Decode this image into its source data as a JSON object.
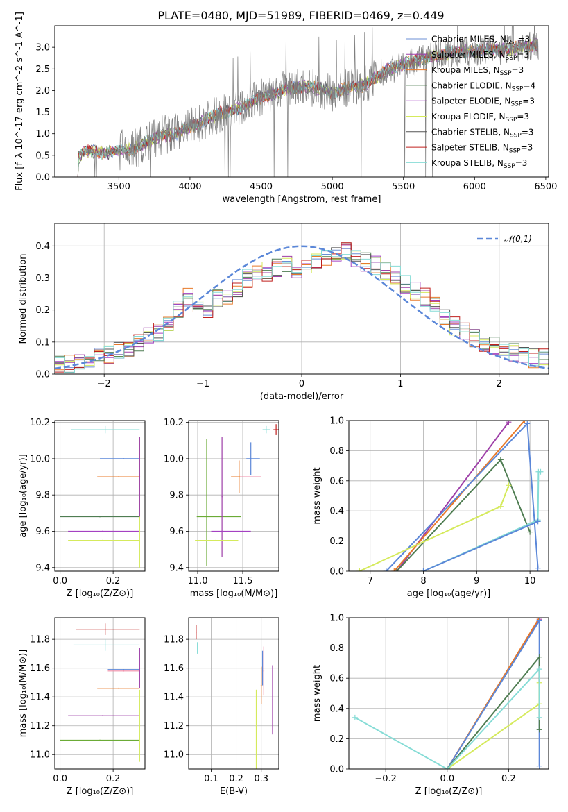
{
  "chart_data": [
    {
      "type": "line",
      "title": "PLATE=0480, MJD=51989, FIBERID=0469, z=0.449",
      "xlabel": "wavelength [Angstrom, rest frame]",
      "ylabel": "Flux [f_λ 10^-17 erg cm^-2 s^-1 A^-1]",
      "xlim": [
        3050,
        6520
      ],
      "ylim": [
        0,
        3.5
      ],
      "xticks": [
        3500,
        4000,
        4500,
        5000,
        5500,
        6000,
        6500
      ],
      "yticks": [
        0.0,
        0.5,
        1.0,
        1.5,
        2.0,
        2.5,
        3.0
      ],
      "spectrum_anchors": {
        "x": [
          3200,
          3260,
          3300,
          3400,
          3500,
          3600,
          3700,
          3800,
          3900,
          4000,
          4100,
          4200,
          4300,
          4400,
          4500,
          4600,
          4700,
          4800,
          4900,
          5000,
          5100,
          5200,
          5300,
          5400,
          5500,
          5600,
          5700,
          5800,
          5900,
          6000,
          6100,
          6200,
          6300,
          6450
        ],
        "y": [
          0.4,
          0.58,
          0.6,
          0.55,
          0.6,
          0.65,
          0.8,
          0.95,
          1.0,
          1.15,
          1.3,
          1.45,
          1.55,
          1.65,
          1.85,
          1.95,
          2.05,
          2.1,
          2.05,
          1.95,
          2.05,
          2.1,
          2.3,
          2.5,
          2.6,
          2.7,
          2.8,
          2.85,
          2.9,
          2.9,
          2.95,
          2.95,
          3.0,
          3.05
        ]
      },
      "legend_loc": "upper right",
      "series": [
        {
          "name": "Chabrier MILES",
          "nssp": "3",
          "color": "#6b8fd6"
        },
        {
          "name": "Salpeter MILES",
          "nssp": "3",
          "color": "#9e3fa8"
        },
        {
          "name": "Kroupa MILES",
          "nssp": "3",
          "color": "#e87a2a"
        },
        {
          "name": "Chabrier ELODIE",
          "nssp": "4",
          "color": "#4f7d52"
        },
        {
          "name": "Salpeter ELODIE",
          "nssp": "3",
          "color": "#a441c2"
        },
        {
          "name": "Kroupa ELODIE",
          "nssp": "3",
          "color": "#d5ea5c"
        },
        {
          "name": "Chabrier STELIB",
          "nssp": "3",
          "color": "#555555"
        },
        {
          "name": "Salpeter STELIB",
          "nssp": "3",
          "color": "#c0201f"
        },
        {
          "name": "Kroupa STELIB",
          "nssp": "3",
          "color": "#86dcd6"
        }
      ],
      "data_color": "#7f7f7f",
      "grid": false
    },
    {
      "type": "area",
      "xlabel": "(data-model)/error",
      "ylabel": "Normed distribution",
      "xlim": [
        -2.5,
        2.5
      ],
      "ylim": [
        0,
        0.47
      ],
      "xticks": [
        -2,
        -1,
        0,
        1,
        2
      ],
      "yticks": [
        0.0,
        0.1,
        0.2,
        0.3,
        0.4
      ],
      "grid": true,
      "legend": "𝒩(0,1)",
      "legend_loc": "upper right",
      "gaussian": {
        "mean": 0,
        "sigma": 1,
        "color": "#5b87d8"
      },
      "histogram_bins": {
        "start": -2.5,
        "width": 0.1,
        "count": 50
      },
      "histogram_base": [
        0.03,
        0.03,
        0.04,
        0.05,
        0.06,
        0.06,
        0.07,
        0.08,
        0.1,
        0.12,
        0.13,
        0.16,
        0.2,
        0.24,
        0.21,
        0.19,
        0.24,
        0.23,
        0.27,
        0.3,
        0.31,
        0.32,
        0.33,
        0.34,
        0.32,
        0.33,
        0.35,
        0.36,
        0.37,
        0.38,
        0.36,
        0.35,
        0.34,
        0.32,
        0.31,
        0.28,
        0.26,
        0.24,
        0.21,
        0.18,
        0.15,
        0.13,
        0.11,
        0.1,
        0.09,
        0.08,
        0.07,
        0.06,
        0.05,
        0.05
      ]
    },
    {
      "type": "scatter",
      "xlabel": "Z [log₁₀(Z/Z⊙)]",
      "ylabel": "age  [log₁₀(age/yr)]",
      "xlim": [
        -0.02,
        0.32
      ],
      "ylim": [
        9.38,
        10.21
      ],
      "xticks": [
        0.0,
        0.2
      ],
      "yticks": [
        9.4,
        9.6,
        9.8,
        10.0,
        10.2
      ],
      "grid": true,
      "points": [
        {
          "x": 0.17,
          "xerr": [
            0.13,
            0.13
          ],
          "y": 10.16,
          "yerr": [
            0.02,
            0.02
          ],
          "color": "#86dcd6"
        },
        {
          "x": 0.24,
          "xerr": [
            0.09,
            0.06
          ],
          "y": 10.0,
          "yerr": [
            0.0,
            0.0
          ],
          "color": "#5b87d8"
        },
        {
          "x": 0.22,
          "xerr": [
            0.08,
            0.08
          ],
          "y": 9.9,
          "yerr": [
            0.0,
            0.0
          ],
          "color": "#e87a2a"
        },
        {
          "x": 0.15,
          "xerr": [
            0.15,
            0.15
          ],
          "y": 9.68,
          "yerr": [
            0.0,
            0.0
          ],
          "color": "#4f7d52"
        },
        {
          "x": 0.16,
          "xerr": [
            0.13,
            0.14
          ],
          "y": 9.6,
          "yerr": [
            0.0,
            0.0
          ],
          "color": "#a441c2"
        },
        {
          "x": 0.16,
          "xerr": [
            0.13,
            0.14
          ],
          "y": 9.55,
          "yerr": [
            0.0,
            0.0
          ],
          "color": "#d5ea5c"
        },
        {
          "x": 0.3,
          "xerr": [
            0.0,
            0.0
          ],
          "y": 9.76,
          "yerr": [
            0.36,
            0.36
          ],
          "color": "#d5ea5c"
        },
        {
          "x": 0.3,
          "xerr": [
            0.0,
            0.0
          ],
          "y": 9.9,
          "yerr": [
            0.22,
            0.22
          ],
          "color": "#9e3fa8"
        }
      ]
    },
    {
      "type": "scatter",
      "xlabel": "mass [log₁₀(M/M⊙)]",
      "ylabel": "",
      "xlim": [
        10.9,
        11.9
      ],
      "ylim": [
        9.38,
        10.21
      ],
      "xticks": [
        11.0,
        11.5
      ],
      "yticks": [
        9.4,
        9.6,
        9.8,
        10.0,
        10.2
      ],
      "grid": true,
      "points": [
        {
          "x": 11.1,
          "xerr": [
            0.11,
            0.38
          ],
          "y": 9.68,
          "yerr": [
            0.27,
            0.43
          ],
          "color": "#6bab36"
        },
        {
          "x": 11.27,
          "xerr": [
            0.0,
            0.0
          ],
          "y": 9.79,
          "yerr": [
            0.33,
            0.33
          ],
          "color": "#9e3fa8"
        },
        {
          "x": 11.27,
          "xerr": [
            0.12,
            0.32
          ],
          "y": 9.6,
          "yerr": [
            0.0,
            0.0
          ],
          "color": "#a441c2"
        },
        {
          "x": 11.2,
          "xerr": [
            0.23,
            0.25
          ],
          "y": 9.55,
          "yerr": [
            0.0,
            0.0
          ],
          "color": "#d5ea5c"
        },
        {
          "x": 11.46,
          "xerr": [
            0.09,
            0.08
          ],
          "y": 9.9,
          "yerr": [
            0.09,
            0.09
          ],
          "color": "#e87a2a"
        },
        {
          "x": 11.58,
          "xerr": [
            0.11,
            0.12
          ],
          "y": 9.9,
          "yerr": [
            0.0,
            0.0
          ],
          "color": "#f08da8"
        },
        {
          "x": 11.59,
          "xerr": [
            0.05,
            0.1
          ],
          "y": 10.0,
          "yerr": [
            0.09,
            0.09
          ],
          "color": "#5b87d8"
        },
        {
          "x": 11.76,
          "xerr": [
            0.04,
            0.04
          ],
          "y": 10.16,
          "yerr": [
            0.02,
            0.02
          ],
          "color": "#86dcd6"
        },
        {
          "x": 11.87,
          "xerr": [
            0.03,
            0.03
          ],
          "y": 10.16,
          "yerr": [
            0.03,
            0.03
          ],
          "color": "#c0201f"
        }
      ]
    },
    {
      "type": "line",
      "xlabel": "age  [log₁₀(age/yr)]",
      "ylabel": "mass weight",
      "xlim": [
        6.6,
        10.35
      ],
      "ylim": [
        0,
        1
      ],
      "xticks": [
        7,
        8,
        9,
        10
      ],
      "yticks": [
        0.0,
        0.2,
        0.4,
        0.6,
        0.8,
        1.0
      ],
      "grid": true,
      "series": [
        {
          "color": "#9e3fa8",
          "x": [
            7.5,
            9.6
          ],
          "y": [
            0.0,
            0.99
          ]
        },
        {
          "color": "#e87a2a",
          "x": [
            7.45,
            9.9
          ],
          "y": [
            0.0,
            1.0
          ]
        },
        {
          "color": "#5b87d8",
          "x": [
            7.3,
            9.95,
            10.15
          ],
          "y": [
            0.0,
            0.98,
            0.02
          ]
        },
        {
          "color": "#4f7d52",
          "x": [
            7.5,
            9.45,
            10.0
          ],
          "y": [
            0.0,
            0.74,
            0.26
          ]
        },
        {
          "color": "#d5ea5c",
          "x": [
            6.8,
            9.45,
            9.6
          ],
          "y": [
            0.0,
            0.43,
            0.57
          ]
        },
        {
          "color": "#86dcd6",
          "x": [
            8.0,
            10.15,
            10.16,
            10.2
          ],
          "y": [
            0.0,
            0.34,
            0.66,
            0.66
          ]
        },
        {
          "color": "#5b87d8",
          "x": [
            8.0,
            10.15
          ],
          "y": [
            0.0,
            0.33
          ]
        }
      ]
    },
    {
      "type": "scatter",
      "xlabel": "Z [log₁₀(Z/Z⊙)]",
      "ylabel": "mass [log₁₀(M/M⊙)]",
      "xlim": [
        -0.02,
        0.32
      ],
      "ylim": [
        10.9,
        11.95
      ],
      "xticks": [
        0.0,
        0.2
      ],
      "yticks": [
        11.0,
        11.2,
        11.4,
        11.6,
        11.8
      ],
      "grid": true,
      "points": [
        {
          "x": 0.17,
          "xerr": [
            0.11,
            0.13
          ],
          "y": 11.87,
          "yerr": [
            0.04,
            0.04
          ],
          "color": "#c0201f"
        },
        {
          "x": 0.17,
          "xerr": [
            0.12,
            0.13
          ],
          "y": 11.76,
          "yerr": [
            0.04,
            0.04
          ],
          "color": "#86dcd6"
        },
        {
          "x": 0.24,
          "xerr": [
            0.06,
            0.06
          ],
          "y": 11.58,
          "yerr": [
            0.0,
            0.0
          ],
          "color": "#f08da8"
        },
        {
          "x": 0.24,
          "xerr": [
            0.06,
            0.06
          ],
          "y": 11.59,
          "yerr": [
            0.0,
            0.0
          ],
          "color": "#5b87d8"
        },
        {
          "x": 0.22,
          "xerr": [
            0.08,
            0.08
          ],
          "y": 11.46,
          "yerr": [
            0.0,
            0.0
          ],
          "color": "#e87a2a"
        },
        {
          "x": 0.16,
          "xerr": [
            0.13,
            0.14
          ],
          "y": 11.27,
          "yerr": [
            0.0,
            0.0
          ],
          "color": "#9e3fa8"
        },
        {
          "x": 0.15,
          "xerr": [
            0.15,
            0.15
          ],
          "y": 11.1,
          "yerr": [
            0.0,
            0.0
          ],
          "color": "#6bab36"
        },
        {
          "x": 0.3,
          "xerr": [
            0.0,
            0.0
          ],
          "y": 11.2,
          "yerr": [
            0.25,
            0.25
          ],
          "color": "#d5ea5c"
        },
        {
          "x": 0.3,
          "xerr": [
            0.0,
            0.0
          ],
          "y": 11.6,
          "yerr": [
            0.14,
            0.14
          ],
          "color": "#9e3fa8"
        }
      ]
    },
    {
      "type": "scatter",
      "xlabel": "E(B-V)",
      "ylabel": "",
      "xlim": [
        0.01,
        0.37
      ],
      "ylim": [
        10.9,
        11.95
      ],
      "xticks": [
        0.1,
        0.2,
        0.3
      ],
      "yticks": [
        11.0,
        11.2,
        11.4,
        11.6,
        11.8
      ],
      "grid": true,
      "points": [
        {
          "x": 0.04,
          "xerr": [
            0.0,
            0.0
          ],
          "y": 11.85,
          "yerr": [
            0.05,
            0.05
          ],
          "color": "#c0201f"
        },
        {
          "x": 0.045,
          "xerr": [
            0.0,
            0.0
          ],
          "y": 11.74,
          "yerr": [
            0.04,
            0.04
          ],
          "color": "#86dcd6"
        },
        {
          "x": 0.28,
          "xerr": [
            0.0,
            0.0
          ],
          "y": 11.2,
          "yerr": [
            0.3,
            0.25
          ],
          "color": "#d5ea5c"
        },
        {
          "x": 0.3,
          "xerr": [
            0.0,
            0.0
          ],
          "y": 11.48,
          "yerr": [
            0.13,
            0.13
          ],
          "color": "#e87a2a"
        },
        {
          "x": 0.305,
          "xerr": [
            0.0,
            0.0
          ],
          "y": 11.6,
          "yerr": [
            0.12,
            0.12
          ],
          "color": "#5b87d8"
        },
        {
          "x": 0.31,
          "xerr": [
            0.0,
            0.0
          ],
          "y": 11.58,
          "yerr": [
            0.17,
            0.17
          ],
          "color": "#f08da8"
        },
        {
          "x": 0.345,
          "xerr": [
            0.0,
            0.0
          ],
          "y": 11.38,
          "yerr": [
            0.24,
            0.24
          ],
          "color": "#9e3fa8"
        }
      ]
    },
    {
      "type": "line",
      "xlabel": "Z [log₁₀(Z/Z⊙)]",
      "ylabel": "mass weight",
      "xlim": [
        -0.32,
        0.33
      ],
      "ylim": [
        0,
        1
      ],
      "xticks": [
        -0.2,
        0.0,
        0.2
      ],
      "yticks": [
        0.0,
        0.2,
        0.4,
        0.6,
        0.8,
        1.0
      ],
      "grid": true,
      "series": [
        {
          "color": "#9e3fa8",
          "x": [
            0.0,
            0.3
          ],
          "y": [
            0.0,
            0.99
          ]
        },
        {
          "color": "#e87a2a",
          "x": [
            0.0,
            0.3
          ],
          "y": [
            0.0,
            1.0
          ]
        },
        {
          "color": "#5b87d8",
          "x": [
            0.0,
            0.3,
            0.3
          ],
          "y": [
            0.0,
            0.98,
            0.02
          ]
        },
        {
          "color": "#4f7d52",
          "x": [
            0.0,
            0.3,
            0.3
          ],
          "y": [
            0.0,
            0.74,
            0.26
          ]
        },
        {
          "color": "#d5ea5c",
          "x": [
            0.0,
            0.3,
            0.3
          ],
          "y": [
            0.0,
            0.43,
            0.57
          ]
        },
        {
          "color": "#86dcd6",
          "x": [
            -0.3,
            0.0,
            0.3,
            0.3
          ],
          "y": [
            0.34,
            0.0,
            0.66,
            0.34
          ]
        }
      ]
    }
  ]
}
